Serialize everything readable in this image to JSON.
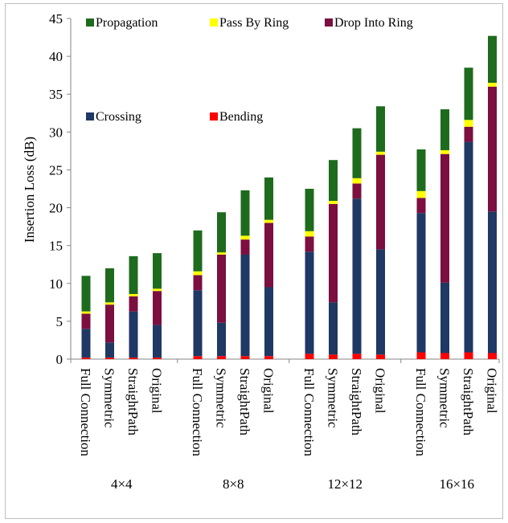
{
  "chart_data": {
    "type": "bar",
    "stacked": true,
    "ylabel": "Insertion Loss (dB)",
    "ylim": [
      0,
      45
    ],
    "yticks": [
      0,
      5,
      10,
      15,
      20,
      25,
      30,
      35,
      40,
      45
    ],
    "grid": false,
    "legend_position": "top-left inside plot area",
    "groups": [
      {
        "name": "4×4",
        "categories": [
          "Full Connection",
          "Symmetric",
          "StraightPath",
          "Original"
        ]
      },
      {
        "name": "8×8",
        "categories": [
          "Full Connection",
          "Symmetric",
          "StraightPath",
          "Original"
        ]
      },
      {
        "name": "12×12",
        "categories": [
          "Full Connection",
          "Symmetric",
          "StraightPath",
          "Original"
        ]
      },
      {
        "name": "16×16",
        "categories": [
          "Full Connection",
          "Symmetric",
          "StraightPath",
          "Original"
        ]
      }
    ],
    "series": [
      {
        "name": "Bending",
        "color": "#ff0000",
        "values": [
          0.2,
          0.2,
          0.2,
          0.2,
          0.4,
          0.4,
          0.4,
          0.4,
          0.7,
          0.6,
          0.7,
          0.6,
          0.9,
          0.8,
          0.9,
          0.8
        ]
      },
      {
        "name": "Crossing",
        "color": "#1f3864",
        "values": [
          3.8,
          2.0,
          6.1,
          4.3,
          8.7,
          4.4,
          13.4,
          9.1,
          13.5,
          6.9,
          20.5,
          13.9,
          18.4,
          9.3,
          27.8,
          18.7
        ]
      },
      {
        "name": "Drop Into Ring",
        "color": "#7b0f3f",
        "values": [
          2.0,
          5.0,
          2.0,
          4.5,
          2.0,
          9.0,
          2.0,
          8.5,
          2.0,
          13.0,
          2.0,
          12.5,
          2.0,
          17.0,
          2.0,
          16.5
        ]
      },
      {
        "name": "Pass By Ring",
        "color": "#ffff00",
        "values": [
          0.3,
          0.3,
          0.3,
          0.3,
          0.5,
          0.3,
          0.5,
          0.4,
          0.7,
          0.4,
          0.7,
          0.4,
          0.9,
          0.5,
          0.9,
          0.5
        ]
      },
      {
        "name": "Propagation",
        "color": "#1e6b1e",
        "values": [
          4.7,
          4.5,
          5.0,
          4.7,
          5.4,
          5.3,
          6.0,
          5.6,
          5.6,
          5.4,
          6.6,
          6.0,
          5.5,
          5.4,
          6.9,
          6.2
        ]
      }
    ],
    "legend_rows": [
      [
        "Propagation",
        "Pass By Ring",
        "Drop Into Ring"
      ],
      [
        "Crossing",
        "Bending"
      ]
    ]
  }
}
